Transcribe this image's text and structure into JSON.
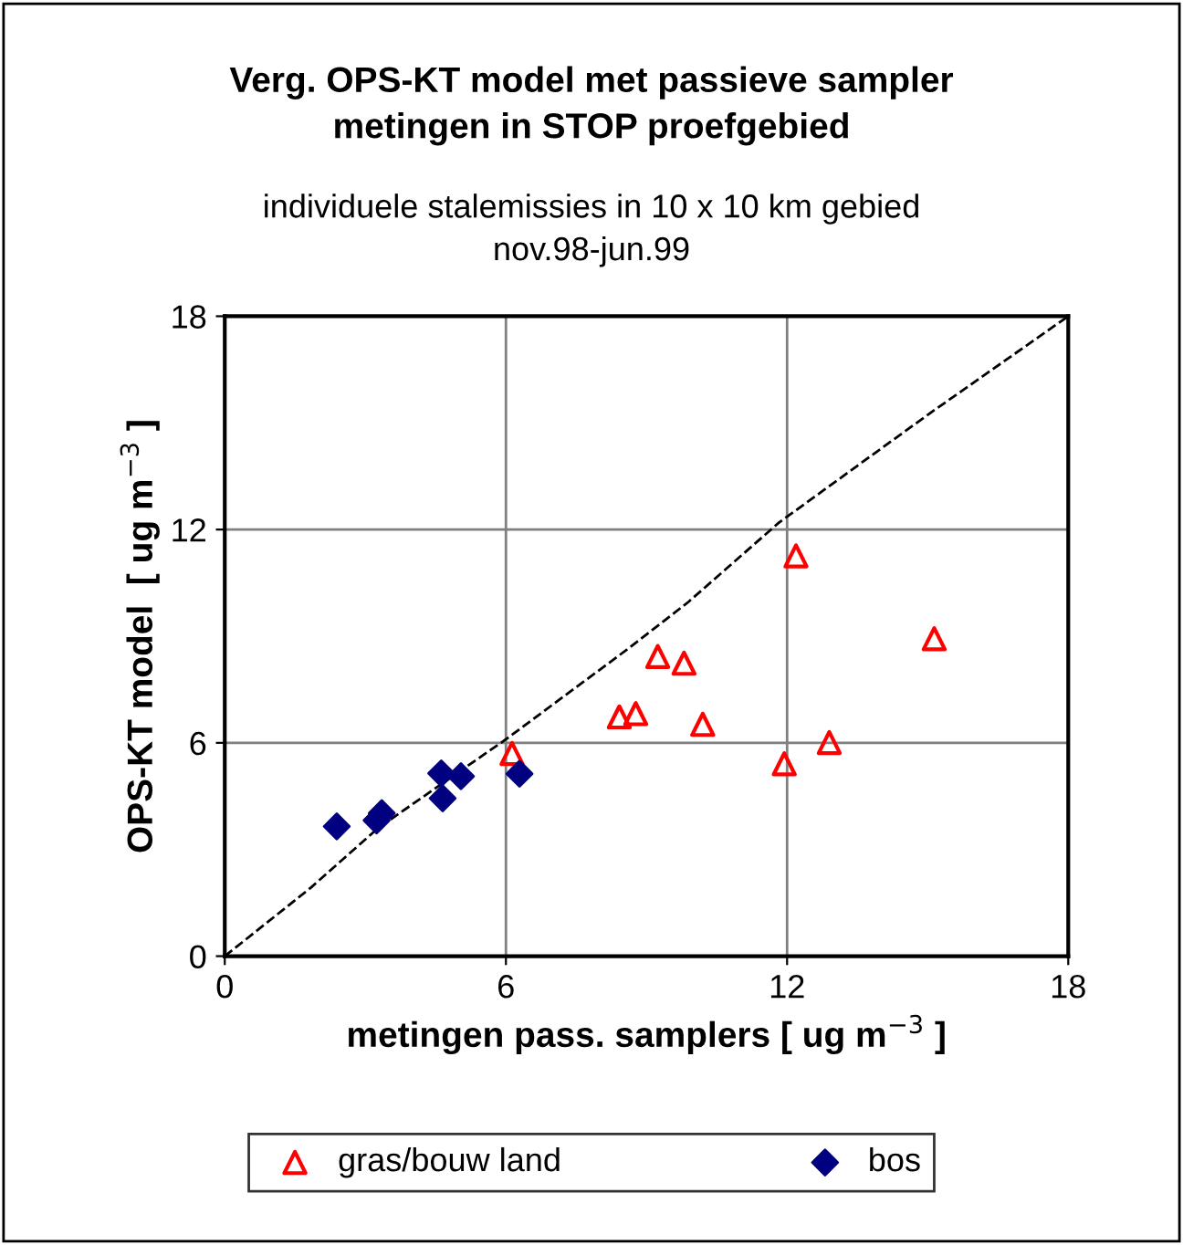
{
  "chart_data": {
    "type": "scatter",
    "title": "Verg. OPS-KT model met passieve sampler\nmetingen in STOP proefgebied",
    "subtitle": "individuele stalemissies in 10 x 10 km gebied\nnov.98-jun.99",
    "xlabel": "metingen pass. samplers [ ug m$^{−3}$ ]",
    "ylabel": "OPS-KT model  [ ug m$^{−3}$ ]",
    "xlim": [
      0,
      18
    ],
    "ylim": [
      0,
      18
    ],
    "xticks": [
      0,
      6,
      12,
      18
    ],
    "yticks": [
      0,
      6,
      12,
      18
    ],
    "grid": true,
    "legend": "bottom",
    "series": [
      {
        "name": "gras/bouw land",
        "color": "#ff0000",
        "marker": "triangle",
        "x": [
          12.19,
          15.14,
          9.24,
          9.8,
          8.42,
          8.77,
          10.2,
          11.94,
          12.9,
          6.13
        ],
        "values": [
          11.26,
          8.93,
          8.43,
          8.24,
          6.73,
          6.82,
          6.52,
          5.41,
          6.01,
          5.7
        ]
      },
      {
        "name": "bos",
        "color": "#000080",
        "marker": "diamond",
        "x": [
          2.39,
          3.24,
          3.35,
          4.62,
          4.65,
          5.04,
          6.29
        ],
        "values": [
          3.65,
          3.82,
          4.02,
          5.14,
          4.44,
          5.06,
          5.13
        ]
      },
      {
        "type": "line",
        "color": "#000000",
        "line_style": "dashed",
        "marker": "none",
        "x": [
          0,
          1.84,
          3.27,
          6,
          8.59,
          9.9,
          11.83,
          15.08,
          18
        ],
        "values": [
          0,
          1.93,
          3.6,
          6.1,
          8.63,
          9.97,
          12.2,
          15.3,
          18
        ]
      }
    ]
  }
}
